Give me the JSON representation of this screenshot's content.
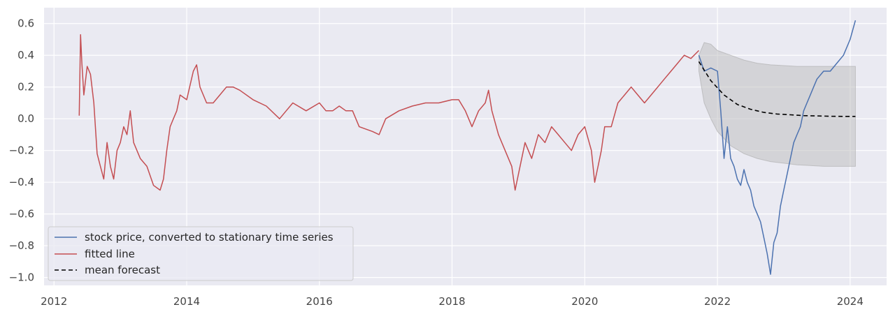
{
  "chart_data": {
    "type": "line",
    "title": "",
    "xlabel": "",
    "ylabel": "",
    "xlim": [
      2011.85,
      2024.55
    ],
    "ylim": [
      -1.05,
      0.7
    ],
    "x_ticks": [
      2012,
      2014,
      2016,
      2018,
      2020,
      2022,
      2024
    ],
    "x_tick_labels": [
      "2012",
      "2014",
      "2016",
      "2018",
      "2020",
      "2022",
      "2024"
    ],
    "y_ticks": [
      0.6,
      0.4,
      0.2,
      0.0,
      -0.2,
      -0.4,
      -0.6,
      -0.8,
      -1.0
    ],
    "y_tick_labels": [
      "0.6",
      "0.4",
      "0.2",
      "0.0",
      "−0.2",
      "−0.4",
      "−0.6",
      "−0.8",
      "−1.0"
    ],
    "grid": true,
    "legend_position": "lower-left",
    "series": [
      {
        "name": "stock price, converted to stationary time series",
        "color": "#4c72b0",
        "style": "solid",
        "x": [
          2021.72,
          2021.8,
          2021.9,
          2022.0,
          2022.05,
          2022.1,
          2022.15,
          2022.2,
          2022.25,
          2022.3,
          2022.35,
          2022.4,
          2022.45,
          2022.5,
          2022.55,
          2022.6,
          2022.65,
          2022.7,
          2022.75,
          2022.8,
          2022.85,
          2022.9,
          2022.95,
          2023.0,
          2023.05,
          2023.1,
          2023.15,
          2023.2,
          2023.25,
          2023.3,
          2023.35,
          2023.4,
          2023.45,
          2023.5,
          2023.6,
          2023.7,
          2023.8,
          2023.9,
          2024.0,
          2024.08
        ],
        "y": [
          0.4,
          0.3,
          0.32,
          0.3,
          0.05,
          -0.25,
          -0.05,
          -0.25,
          -0.3,
          -0.38,
          -0.42,
          -0.32,
          -0.4,
          -0.45,
          -0.55,
          -0.6,
          -0.65,
          -0.75,
          -0.85,
          -0.98,
          -0.78,
          -0.72,
          -0.55,
          -0.45,
          -0.35,
          -0.25,
          -0.15,
          -0.1,
          -0.05,
          0.05,
          0.1,
          0.15,
          0.2,
          0.25,
          0.3,
          0.3,
          0.35,
          0.4,
          0.5,
          0.62
        ]
      },
      {
        "name": "fitted line",
        "color": "#c44e52",
        "style": "solid",
        "x": [
          2012.38,
          2012.4,
          2012.42,
          2012.45,
          2012.5,
          2012.55,
          2012.6,
          2012.65,
          2012.7,
          2012.75,
          2012.8,
          2012.85,
          2012.9,
          2012.95,
          2013.0,
          2013.05,
          2013.1,
          2013.15,
          2013.2,
          2013.3,
          2013.4,
          2013.5,
          2013.6,
          2013.65,
          2013.7,
          2013.75,
          2013.8,
          2013.85,
          2013.9,
          2014.0,
          2014.1,
          2014.15,
          2014.2,
          2014.3,
          2014.4,
          2014.5,
          2014.6,
          2014.7,
          2014.8,
          2015.0,
          2015.2,
          2015.4,
          2015.5,
          2015.6,
          2015.8,
          2016.0,
          2016.1,
          2016.2,
          2016.3,
          2016.4,
          2016.5,
          2016.6,
          2016.8,
          2016.9,
          2017.0,
          2017.2,
          2017.4,
          2017.6,
          2017.8,
          2018.0,
          2018.1,
          2018.2,
          2018.3,
          2018.4,
          2018.5,
          2018.55,
          2018.6,
          2018.7,
          2018.8,
          2018.9,
          2018.95,
          2019.0,
          2019.1,
          2019.2,
          2019.3,
          2019.4,
          2019.5,
          2019.6,
          2019.7,
          2019.8,
          2019.9,
          2020.0,
          2020.1,
          2020.15,
          2020.2,
          2020.25,
          2020.3,
          2020.4,
          2020.5,
          2020.6,
          2020.7,
          2020.8,
          2020.9,
          2021.0,
          2021.1,
          2021.2,
          2021.3,
          2021.4,
          2021.5,
          2021.6,
          2021.72
        ],
        "y": [
          0.02,
          0.53,
          0.35,
          0.15,
          0.33,
          0.28,
          0.1,
          -0.22,
          -0.3,
          -0.38,
          -0.15,
          -0.3,
          -0.38,
          -0.2,
          -0.15,
          -0.05,
          -0.1,
          0.05,
          -0.15,
          -0.25,
          -0.3,
          -0.42,
          -0.45,
          -0.38,
          -0.2,
          -0.05,
          0.0,
          0.05,
          0.15,
          0.12,
          0.3,
          0.34,
          0.2,
          0.1,
          0.1,
          0.15,
          0.2,
          0.2,
          0.18,
          0.12,
          0.08,
          0.0,
          0.05,
          0.1,
          0.05,
          0.1,
          0.05,
          0.05,
          0.08,
          0.05,
          0.05,
          -0.05,
          -0.08,
          -0.1,
          0.0,
          0.05,
          0.08,
          0.1,
          0.1,
          0.12,
          0.12,
          0.05,
          -0.05,
          0.05,
          0.1,
          0.18,
          0.05,
          -0.1,
          -0.2,
          -0.3,
          -0.45,
          -0.35,
          -0.15,
          -0.25,
          -0.1,
          -0.15,
          -0.05,
          -0.1,
          -0.15,
          -0.2,
          -0.1,
          -0.05,
          -0.2,
          -0.4,
          -0.3,
          -0.2,
          -0.05,
          -0.05,
          0.1,
          0.15,
          0.2,
          0.15,
          0.1,
          0.15,
          0.2,
          0.25,
          0.3,
          0.35,
          0.4,
          0.38,
          0.43
        ]
      },
      {
        "name": "mean forecast",
        "color": "#000000",
        "style": "dashed",
        "x": [
          2021.72,
          2021.9,
          2022.1,
          2022.3,
          2022.5,
          2022.7,
          2022.9,
          2023.1,
          2023.3,
          2023.5,
          2023.7,
          2023.9,
          2024.08
        ],
        "y": [
          0.36,
          0.24,
          0.15,
          0.09,
          0.06,
          0.04,
          0.03,
          0.025,
          0.02,
          0.018,
          0.016,
          0.015,
          0.015
        ]
      }
    ],
    "confidence_band": {
      "color": "#bbbbbb",
      "x": [
        2021.72,
        2021.8,
        2021.9,
        2022.0,
        2022.2,
        2022.4,
        2022.6,
        2022.8,
        2023.0,
        2023.2,
        2023.4,
        2023.6,
        2023.8,
        2024.08
      ],
      "upper": [
        0.4,
        0.48,
        0.47,
        0.43,
        0.4,
        0.37,
        0.35,
        0.34,
        0.335,
        0.33,
        0.33,
        0.33,
        0.33,
        0.33
      ],
      "lower": [
        0.3,
        0.1,
        0.0,
        -0.08,
        -0.17,
        -0.22,
        -0.25,
        -0.27,
        -0.28,
        -0.29,
        -0.295,
        -0.3,
        -0.3,
        -0.3
      ]
    }
  }
}
